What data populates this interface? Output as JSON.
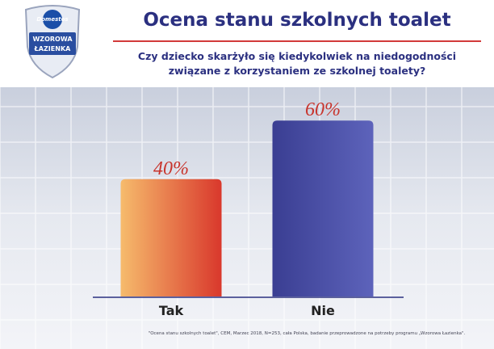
{
  "logo": {
    "brand": "Domestos",
    "line1": "WZOROWA",
    "line2": "ŁAZIENKA"
  },
  "chart_data": {
    "type": "bar",
    "title": "Ocena stanu szkolnych toalet",
    "subtitle": "Czy dziecko skarżyło się kiedykolwiek na niedogodności związane z korzystaniem ze szkolnej toalety?",
    "categories": [
      "Tak",
      "Nie"
    ],
    "values": [
      40,
      60
    ],
    "value_labels": [
      "40%",
      "60%"
    ],
    "colors": [
      "#d9382c",
      "#3a3e92"
    ],
    "footnote": "\"Ocena stanu szkolnych toalet\", CEM, Marzec 2018, N=253, cała Polska, badanie przeprowadzone na potrzeby programu „Wzorowa Łazienka\"."
  }
}
